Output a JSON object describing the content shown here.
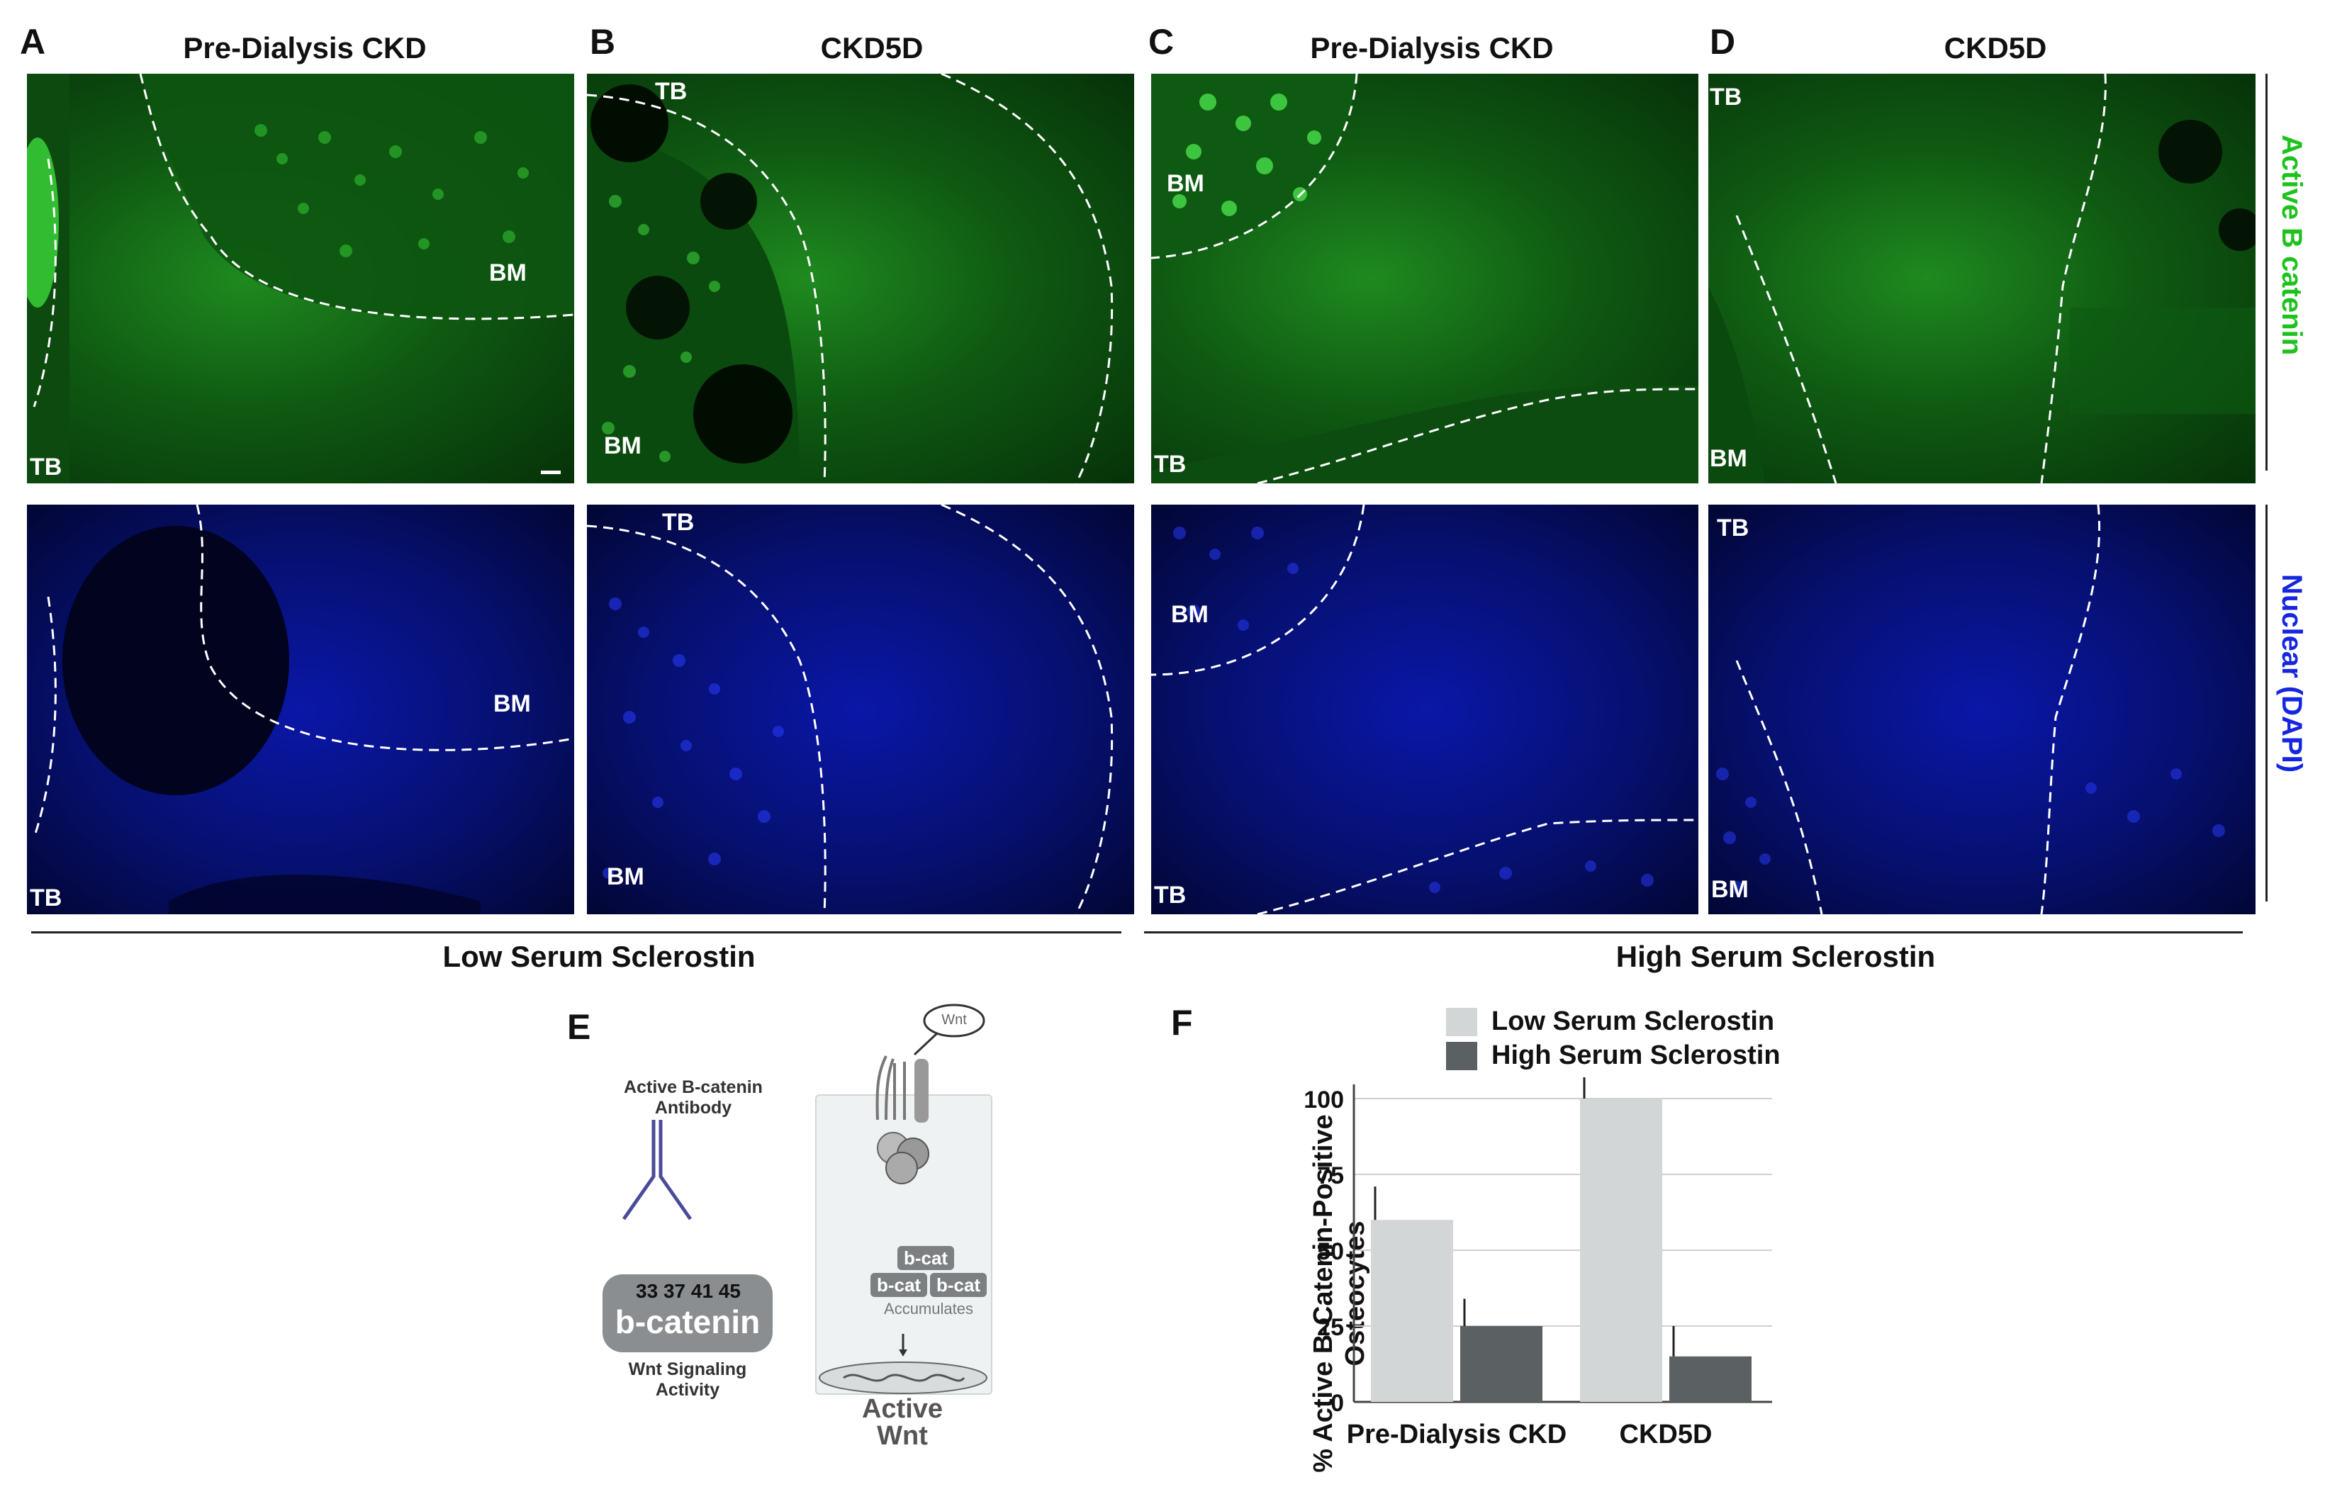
{
  "panels": {
    "A": {
      "letter": "A",
      "title": "Pre-Dialysis CKD",
      "label_tb_top": "",
      "label_bm": "BM",
      "label_tb": "TB"
    },
    "B": {
      "letter": "B",
      "title": "CKD5D",
      "label_tb": "TB",
      "label_bm": "BM"
    },
    "C": {
      "letter": "C",
      "title": "Pre-Dialysis CKD",
      "label_bm": "BM",
      "label_tb": "TB"
    },
    "D": {
      "letter": "D",
      "title": "CKD5D",
      "label_tb": "TB",
      "label_bm": "BM"
    },
    "E": {
      "letter": "E"
    },
    "F": {
      "letter": "F"
    }
  },
  "row_labels": {
    "green": "Active B catenin",
    "blue": "Nuclear (DAPI)"
  },
  "groups": {
    "low": "Low Serum Sclerostin",
    "high": "High Serum Sclerostin"
  },
  "diagram": {
    "antibody_label": "Active B-catenin Antibody",
    "residues": "33 37 41 45",
    "protein": "b-catenin",
    "signaling_label": "Wnt Signaling Activity",
    "wnt": "Wnt",
    "bcat": "b-cat",
    "accumulates": "Accumulates",
    "active_wnt_1": "Active",
    "active_wnt_2": "Wnt"
  },
  "chart_data": {
    "type": "bar",
    "categories": [
      "Pre-Dialysis CKD",
      "CKD5D"
    ],
    "series": [
      {
        "name": "Low Serum Sclerostin",
        "values": [
          60,
          100
        ],
        "errors": [
          11,
          7
        ],
        "color": "#d3d6d6"
      },
      {
        "name": "High Serum Sclerostin",
        "values": [
          25,
          15
        ],
        "errors": [
          9,
          10
        ],
        "color": "#5b6063"
      }
    ],
    "ylabel": "% Active B-Catenin-Positive Osteocytes",
    "ylim": [
      0,
      100
    ],
    "yticks": [
      "0",
      "25",
      "50",
      "75",
      "100"
    ],
    "legend_position": "top"
  },
  "colors": {
    "green_stain": "#19c21e",
    "blue_stain": "#0a17a8",
    "green_label": "#1ec21e",
    "blue_label": "#1426e0"
  }
}
